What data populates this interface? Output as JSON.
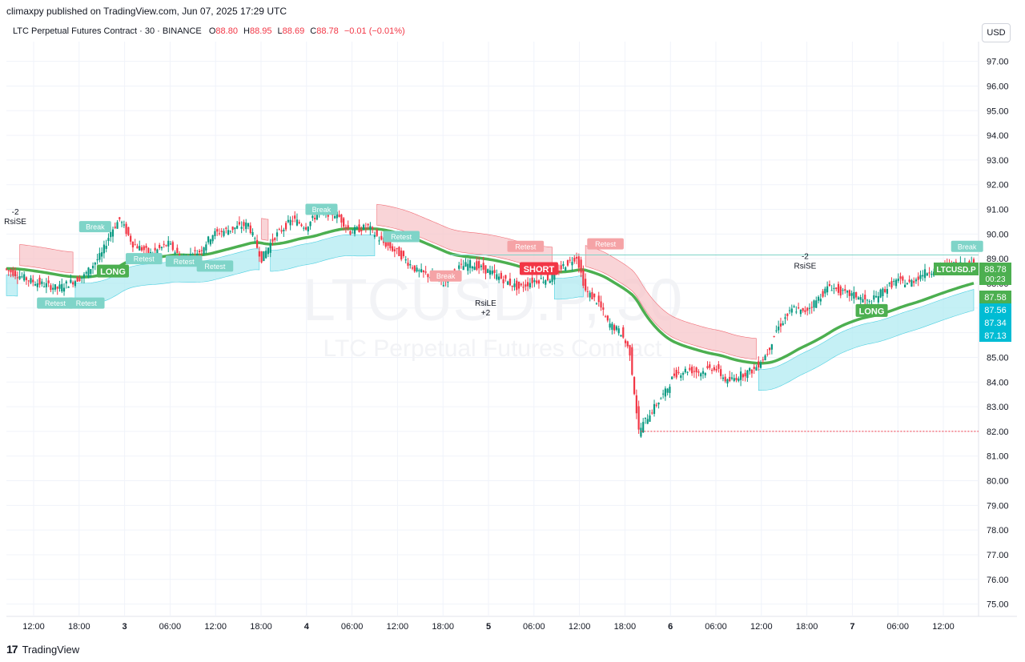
{
  "header": {
    "published_by": "climaxpy published on TradingView.com, Jun 07, 2025 17:29 UTC",
    "symbol_title": "LTC Perpetual Futures Contract · 30 · BINANCE",
    "ohlc": [
      {
        "label": "O",
        "value": "88.80"
      },
      {
        "label": "H",
        "value": "88.95"
      },
      {
        "label": "L",
        "value": "88.69"
      },
      {
        "label": "C",
        "value": "88.78"
      }
    ],
    "change": "−0.01 (−0.01%)",
    "currency": "USD"
  },
  "watermark": {
    "symbol": "LTCUSD.P, 30",
    "description": "LTC Perpetual Futures Contract"
  },
  "footer": {
    "brand": "TradingView"
  },
  "colors": {
    "up": "#089981",
    "down": "#f23645",
    "ema": "#4caf50",
    "band_bull": "#b2ebf2",
    "band_bear": "#f7c5c9",
    "label_teal": "#7fd4c8",
    "label_red": "#f5a3a6"
  },
  "chart_data": {
    "type": "candlestick",
    "title": "",
    "y_ticks": [
      "97.00",
      "96.00",
      "95.00",
      "94.00",
      "93.00",
      "92.00",
      "91.00",
      "90.00",
      "89.00",
      "88.00",
      "87.00",
      "86.00",
      "85.00",
      "84.00",
      "83.00",
      "82.00",
      "81.00",
      "80.00",
      "79.00",
      "78.00",
      "77.00",
      "76.00",
      "75.00"
    ],
    "ylim": [
      74.5,
      97.8
    ],
    "x_ticks": [
      "12:00",
      "18:00",
      "3",
      "06:00",
      "12:00",
      "18:00",
      "4",
      "06:00",
      "12:00",
      "18:00",
      "5",
      "06:00",
      "12:00",
      "18:00",
      "6",
      "06:00",
      "12:00",
      "18:00",
      "7",
      "06:00",
      "12:00"
    ],
    "price_path": [
      [
        0,
        88.6
      ],
      [
        12,
        88.1
      ],
      [
        24,
        87.8
      ],
      [
        36,
        88.3
      ],
      [
        44,
        89.2
      ],
      [
        48,
        90.1
      ],
      [
        52,
        90.6
      ],
      [
        58,
        89.6
      ],
      [
        66,
        89.2
      ],
      [
        74,
        89.6
      ],
      [
        80,
        89.0
      ],
      [
        88,
        89.3
      ],
      [
        94,
        90.0
      ],
      [
        102,
        90.2
      ],
      [
        110,
        90.4
      ],
      [
        116,
        89.0
      ],
      [
        122,
        89.9
      ],
      [
        130,
        90.6
      ],
      [
        136,
        90.3
      ],
      [
        142,
        90.9
      ],
      [
        150,
        90.8
      ],
      [
        156,
        90.1
      ],
      [
        164,
        90.3
      ],
      [
        170,
        89.7
      ],
      [
        178,
        89.2
      ],
      [
        186,
        88.5
      ],
      [
        192,
        88.3
      ],
      [
        198,
        88.0
      ],
      [
        204,
        88.6
      ],
      [
        210,
        88.8
      ],
      [
        218,
        88.5
      ],
      [
        226,
        88.1
      ],
      [
        232,
        87.8
      ],
      [
        238,
        88.1
      ],
      [
        246,
        88.2
      ],
      [
        252,
        88.7
      ],
      [
        258,
        89.1
      ],
      [
        262,
        87.7
      ],
      [
        268,
        87.2
      ],
      [
        272,
        86.4
      ],
      [
        278,
        86.0
      ],
      [
        282,
        85.2
      ],
      [
        286,
        82.0
      ],
      [
        290,
        82.6
      ],
      [
        294,
        83.1
      ],
      [
        298,
        83.6
      ],
      [
        302,
        84.3
      ],
      [
        308,
        84.5
      ],
      [
        314,
        84.4
      ],
      [
        320,
        84.6
      ],
      [
        326,
        84.0
      ],
      [
        332,
        84.3
      ],
      [
        338,
        84.5
      ],
      [
        344,
        85.2
      ],
      [
        348,
        86.1
      ],
      [
        352,
        86.6
      ],
      [
        356,
        87.0
      ],
      [
        360,
        86.8
      ],
      [
        366,
        87.3
      ],
      [
        372,
        87.9
      ],
      [
        378,
        87.6
      ],
      [
        384,
        87.5
      ],
      [
        390,
        87.2
      ],
      [
        396,
        87.7
      ],
      [
        402,
        88.1
      ],
      [
        408,
        88.0
      ],
      [
        414,
        88.4
      ],
      [
        420,
        88.6
      ],
      [
        426,
        88.7
      ],
      [
        432,
        88.8
      ],
      [
        436,
        88.78
      ]
    ],
    "annotations": [
      {
        "text": "Break",
        "kind": "teal",
        "at": [
          40,
          90.3
        ]
      },
      {
        "text": "Retest",
        "kind": "teal",
        "at": [
          62,
          89.0
        ]
      },
      {
        "text": "Retest",
        "kind": "teal",
        "at": [
          80,
          88.9
        ]
      },
      {
        "text": "Retest",
        "kind": "teal",
        "at": [
          94,
          88.7
        ]
      },
      {
        "text": "Retest",
        "kind": "teal",
        "at": [
          22,
          87.2
        ]
      },
      {
        "text": "Retest",
        "kind": "teal",
        "at": [
          36,
          87.2
        ]
      },
      {
        "text": "Break",
        "kind": "teal",
        "at": [
          142,
          91.0
        ]
      },
      {
        "text": "Retest",
        "kind": "teal",
        "at": [
          178,
          89.9
        ]
      },
      {
        "text": "Break",
        "kind": "red",
        "at": [
          198,
          88.3
        ]
      },
      {
        "text": "Retest",
        "kind": "red",
        "at": [
          234,
          89.5
        ]
      },
      {
        "text": "Retest",
        "kind": "red",
        "at": [
          270,
          89.6
        ]
      },
      {
        "text": "Break",
        "kind": "teal",
        "at": [
          433,
          89.5
        ]
      },
      {
        "text": "LONG",
        "kind": "green",
        "at": [
          48,
          88.5
        ]
      },
      {
        "text": "SHORT",
        "kind": "short",
        "at": [
          240,
          88.6
        ]
      },
      {
        "text": "LONG",
        "kind": "green",
        "at": [
          390,
          86.9
        ]
      }
    ],
    "signals": [
      {
        "line1": "-2",
        "line2": "RsiSE",
        "at": [
          4,
          90.4
        ]
      },
      {
        "line1": "RsiLE",
        "line2": "+2",
        "at": [
          216,
          86.7
        ]
      },
      {
        "line1": "-2",
        "line2": "RsiSE",
        "at": [
          360,
          88.6
        ]
      }
    ],
    "support_level": 82.0,
    "ema_final": 87.58,
    "price_tags": [
      {
        "label": "LTCUSD.P",
        "value": "88.78",
        "sub": "00:23",
        "kind": "green"
      },
      {
        "label": "",
        "value": "87.58",
        "sub": "",
        "kind": "green"
      },
      {
        "label": "",
        "value": "87.56",
        "sub": "",
        "kind": "cyan"
      },
      {
        "label": "",
        "value": "87.34",
        "sub": "",
        "kind": "cyan"
      },
      {
        "label": "",
        "value": "87.13",
        "sub": "",
        "kind": "cyan"
      }
    ]
  }
}
